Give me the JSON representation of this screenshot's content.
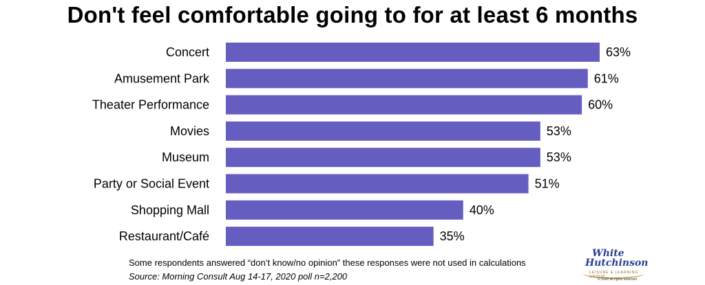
{
  "chart_data": {
    "type": "bar",
    "orientation": "horizontal",
    "title": "Don't feel comfortable going to for at least 6 months",
    "categories": [
      "Concert",
      "Amusement Park",
      "Theater Performance",
      "Movies",
      "Museum",
      "Party or Social Event",
      "Shopping Mall",
      "Restaurant/Café"
    ],
    "values": [
      63,
      61,
      60,
      53,
      53,
      51,
      40,
      35
    ],
    "data_labels": [
      "63%",
      "61%",
      "60%",
      "53%",
      "53%",
      "51%",
      "40%",
      "35%"
    ],
    "unit": "%",
    "xlim": [
      0,
      63
    ],
    "grid": false,
    "bar_color": "#655ec0"
  },
  "notes": {
    "line1": "Some respondents answered “don’t know/no opinion”  these responses were not used in calculations",
    "line2": "Source: Morning Consult Aug 14-17, 2020 poll n=2,200"
  },
  "logo": {
    "line1": "White",
    "line2": "Hutchinson",
    "tagline": "LEISURE & LEARNING GROUP",
    "copyright": "© 2020 all rights reserved"
  }
}
